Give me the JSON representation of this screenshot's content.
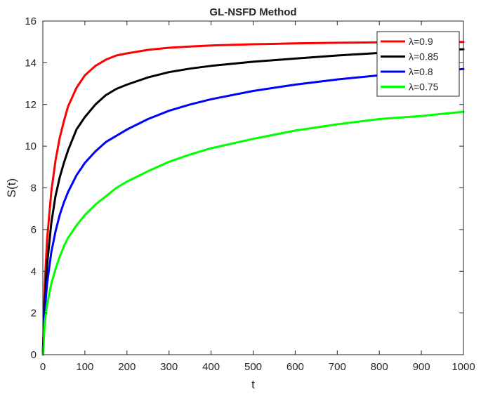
{
  "chart_data": {
    "type": "line",
    "title": "GL-NSFD Method",
    "xlabel": "t",
    "ylabel": "S(t)",
    "xlim": [
      0,
      1000
    ],
    "ylim": [
      0,
      16
    ],
    "xticks": [
      0,
      100,
      200,
      300,
      400,
      500,
      600,
      700,
      800,
      900,
      1000
    ],
    "yticks": [
      0,
      2,
      4,
      6,
      8,
      10,
      12,
      14,
      16
    ],
    "grid": false,
    "legend_position": "top-right",
    "series": [
      {
        "name": "λ=0.9",
        "color": "#ff0000",
        "x": [
          0,
          5,
          10,
          20,
          30,
          40,
          50,
          60,
          80,
          100,
          125,
          150,
          175,
          200,
          250,
          300,
          350,
          400,
          500,
          600,
          700,
          800,
          900,
          1000
        ],
        "y": [
          0,
          3.5,
          5.5,
          7.8,
          9.3,
          10.4,
          11.2,
          11.9,
          12.8,
          13.4,
          13.85,
          14.15,
          14.35,
          14.45,
          14.62,
          14.72,
          14.78,
          14.83,
          14.89,
          14.93,
          14.96,
          14.98,
          14.99,
          15.0
        ]
      },
      {
        "name": "λ=0.85",
        "color": "#000000",
        "x": [
          0,
          5,
          10,
          20,
          30,
          40,
          50,
          60,
          80,
          100,
          125,
          150,
          175,
          200,
          250,
          300,
          350,
          400,
          500,
          600,
          700,
          800,
          900,
          1000
        ],
        "y": [
          0,
          2.8,
          4.3,
          6.3,
          7.6,
          8.5,
          9.2,
          9.8,
          10.8,
          11.4,
          12.0,
          12.45,
          12.75,
          12.95,
          13.3,
          13.55,
          13.72,
          13.85,
          14.05,
          14.2,
          14.35,
          14.47,
          14.58,
          14.65
        ]
      },
      {
        "name": "λ=0.8",
        "color": "#0000ff",
        "x": [
          0,
          5,
          10,
          20,
          30,
          40,
          50,
          60,
          80,
          100,
          125,
          150,
          175,
          200,
          250,
          300,
          350,
          400,
          500,
          600,
          700,
          800,
          900,
          1000
        ],
        "y": [
          0,
          2.2,
          3.4,
          4.9,
          5.9,
          6.7,
          7.3,
          7.8,
          8.6,
          9.2,
          9.75,
          10.2,
          10.5,
          10.8,
          11.3,
          11.7,
          12.0,
          12.25,
          12.65,
          12.95,
          13.2,
          13.4,
          13.55,
          13.7
        ]
      },
      {
        "name": "λ=0.75",
        "color": "#00ff00",
        "x": [
          0,
          5,
          10,
          20,
          30,
          40,
          50,
          60,
          80,
          100,
          125,
          150,
          175,
          200,
          250,
          300,
          350,
          400,
          500,
          600,
          700,
          800,
          900,
          1000
        ],
        "y": [
          0,
          1.6,
          2.4,
          3.4,
          4.1,
          4.7,
          5.2,
          5.6,
          6.2,
          6.7,
          7.2,
          7.6,
          8.0,
          8.3,
          8.8,
          9.25,
          9.6,
          9.9,
          10.35,
          10.75,
          11.05,
          11.3,
          11.45,
          11.65
        ]
      }
    ]
  }
}
